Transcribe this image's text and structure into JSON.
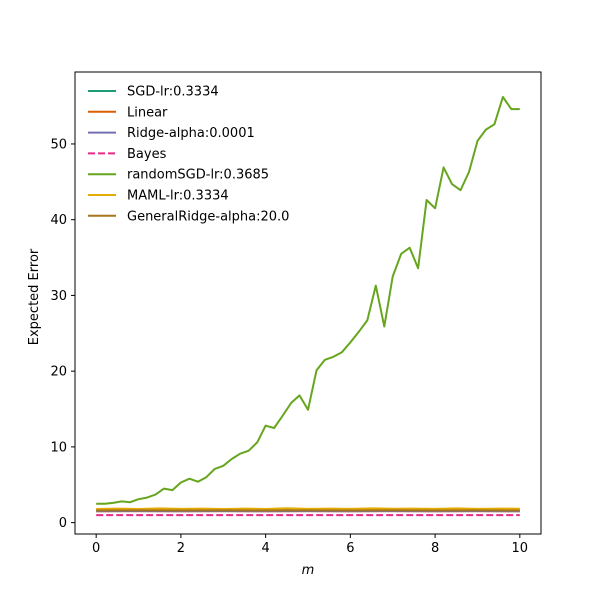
{
  "chart_data": {
    "type": "line",
    "xlabel": "m",
    "ylabel": "Expected Error",
    "xlim": [
      -0.5,
      10.5
    ],
    "ylim": [
      -1.5,
      59.5
    ],
    "x_ticks": [
      0,
      2,
      4,
      6,
      8,
      10
    ],
    "y_ticks": [
      0,
      10,
      20,
      30,
      40,
      50
    ],
    "grid": false,
    "legend_position": "upper left",
    "series": [
      {
        "name": "SGD-lr:0.3334",
        "color": "#1b9e77",
        "style": "solid",
        "x": [
          0,
          1,
          2,
          3,
          4,
          5,
          6,
          7,
          8,
          9,
          10
        ],
        "y": [
          1.7,
          1.75,
          1.7,
          1.75,
          1.72,
          1.76,
          1.74,
          1.75,
          1.72,
          1.75,
          1.72
        ]
      },
      {
        "name": "Linear",
        "color": "#d95f02",
        "style": "solid",
        "x": [
          0,
          1,
          2,
          3,
          4,
          5,
          6,
          7,
          8,
          9,
          10
        ],
        "y": [
          1.5,
          1.52,
          1.5,
          1.52,
          1.5,
          1.52,
          1.5,
          1.52,
          1.5,
          1.52,
          1.5
        ]
      },
      {
        "name": "Ridge-alpha:0.0001",
        "color": "#7570b3",
        "style": "solid",
        "x": [
          0,
          1,
          2,
          3,
          4,
          5,
          6,
          7,
          8,
          9,
          10
        ],
        "y": [
          1.5,
          1.52,
          1.5,
          1.52,
          1.5,
          1.52,
          1.5,
          1.52,
          1.5,
          1.52,
          1.5
        ]
      },
      {
        "name": "Bayes",
        "color": "#e7298a",
        "style": "dashed",
        "x": [
          0,
          10
        ],
        "y": [
          1.0,
          1.0
        ]
      },
      {
        "name": "randomSGD-lr:0.3685",
        "color": "#66a61e",
        "style": "solid",
        "x": [
          0,
          0.2,
          0.4,
          0.6,
          0.8,
          1.0,
          1.2,
          1.4,
          1.6,
          1.8,
          2.0,
          2.2,
          2.4,
          2.6,
          2.8,
          3.0,
          3.2,
          3.4,
          3.6,
          3.8,
          4.0,
          4.2,
          4.4,
          4.6,
          4.8,
          5.0,
          5.2,
          5.4,
          5.6,
          5.8,
          6.0,
          6.2,
          6.4,
          6.6,
          6.8,
          7.0,
          7.2,
          7.4,
          7.6,
          7.8,
          8.0,
          8.2,
          8.4,
          8.6,
          8.8,
          9.0,
          9.2,
          9.4,
          9.6,
          9.8,
          10.0
        ],
        "y": [
          2.5,
          2.5,
          2.6,
          2.8,
          2.7,
          3.1,
          3.3,
          3.7,
          4.5,
          4.3,
          5.3,
          5.8,
          5.4,
          6.0,
          7.1,
          7.5,
          8.4,
          9.1,
          9.5,
          10.6,
          12.8,
          12.5,
          14.1,
          15.8,
          16.8,
          14.9,
          20.1,
          21.5,
          21.9,
          22.5,
          23.8,
          25.2,
          26.7,
          31.3,
          25.9,
          32.5,
          35.5,
          36.3,
          33.6,
          42.6,
          41.5,
          46.9,
          44.7,
          43.9,
          46.3,
          50.4,
          51.9,
          52.6,
          56.2,
          54.6,
          54.6
        ]
      },
      {
        "name": "MAML-lr:0.3334",
        "color": "#e6ab02",
        "style": "solid",
        "x": [
          0,
          0.5,
          1,
          1.5,
          2,
          2.5,
          3,
          3.5,
          4,
          4.5,
          5,
          5.5,
          6,
          6.5,
          7,
          7.5,
          8,
          8.5,
          9,
          9.5,
          10
        ],
        "y": [
          1.8,
          1.85,
          1.8,
          1.88,
          1.82,
          1.86,
          1.8,
          1.86,
          1.8,
          1.9,
          1.82,
          1.86,
          1.82,
          1.88,
          1.84,
          1.86,
          1.82,
          1.88,
          1.82,
          1.86,
          1.84
        ]
      },
      {
        "name": "GeneralRidge-alpha:20.0",
        "color": "#a6761d",
        "style": "solid",
        "x": [
          0,
          1,
          2,
          3,
          4,
          5,
          6,
          7,
          8,
          9,
          10
        ],
        "y": [
          1.6,
          1.62,
          1.6,
          1.62,
          1.6,
          1.62,
          1.6,
          1.62,
          1.6,
          1.62,
          1.6
        ]
      }
    ]
  }
}
